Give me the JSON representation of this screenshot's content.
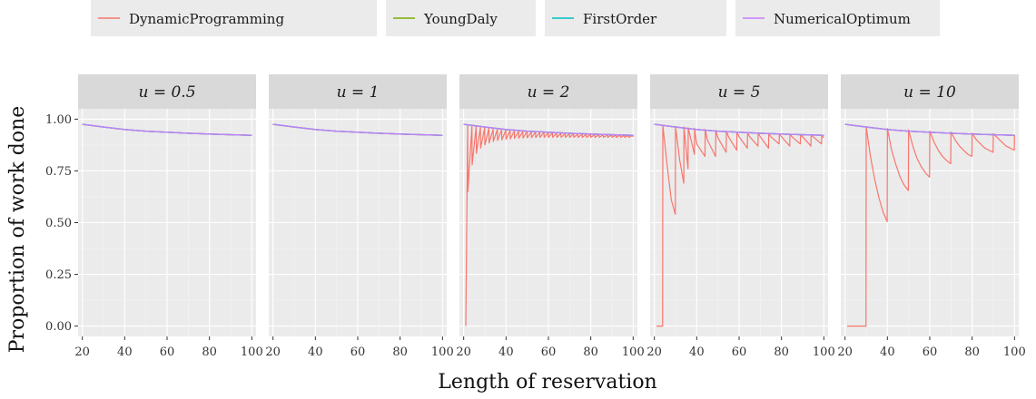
{
  "chart_data": {
    "type": "line",
    "xlabel": "Length of reservation",
    "ylabel": "Proportion of work done",
    "xlim": [
      18,
      102
    ],
    "ylim": [
      -0.05,
      1.05
    ],
    "x_ticks": [
      20,
      40,
      60,
      80,
      100
    ],
    "y_ticks": [
      0.0,
      0.25,
      0.5,
      0.75,
      1.0
    ],
    "y_tick_labels": [
      "0.00",
      "0.25",
      "0.50",
      "0.75",
      "1.00"
    ],
    "grid": true,
    "legend_position": "top",
    "legend": [
      {
        "label": "DynamicProgramming",
        "color": "#F8766D"
      },
      {
        "label": "YoungDaly",
        "color": "#7CAE00"
      },
      {
        "label": "FirstOrder",
        "color": "#00BFC4"
      },
      {
        "label": "NumericalOptimum",
        "color": "#C77CFF"
      }
    ],
    "optimum_curve": {
      "x": [
        20,
        30,
        40,
        50,
        60,
        70,
        80,
        90,
        100
      ],
      "y": [
        0.975,
        0.962,
        0.95,
        0.942,
        0.937,
        0.932,
        0.928,
        0.925,
        0.922
      ]
    },
    "facets": [
      {
        "strip": "u = 0.5",
        "dp": {
          "x": [
            20,
            30,
            40,
            50,
            60,
            70,
            80,
            90,
            100
          ],
          "y": [
            0.975,
            0.962,
            0.95,
            0.942,
            0.937,
            0.932,
            0.928,
            0.925,
            0.922
          ]
        }
      },
      {
        "strip": "u = 1",
        "dp": {
          "x": [
            20,
            30,
            40,
            50,
            60,
            70,
            80,
            90,
            100
          ],
          "y": [
            0.975,
            0.962,
            0.95,
            0.942,
            0.937,
            0.932,
            0.928,
            0.925,
            0.922
          ]
        }
      },
      {
        "strip": "u = 2",
        "dp": {
          "x": [
            21,
            21.9,
            22,
            23.9,
            24,
            25.9,
            26,
            27.9,
            28,
            29.9,
            30,
            31.9,
            32,
            33.9,
            34,
            35.9,
            36,
            37.9,
            38,
            39.9,
            40,
            41.9,
            42,
            43.9,
            44,
            45.9,
            46,
            47.9,
            48,
            49.9,
            50,
            51.9,
            52,
            53.9,
            54,
            55.9,
            56,
            57.9,
            58,
            59.9,
            60,
            61.9,
            62,
            63.9,
            64,
            65.9,
            66,
            67.9,
            68,
            69.9,
            70,
            71.9,
            72,
            73.9,
            74,
            75.9,
            76,
            77.9,
            78,
            79.9,
            80,
            81.9,
            82,
            83.9,
            84,
            85.9,
            86,
            87.9,
            88,
            89.9,
            90,
            91.9,
            92,
            93.9,
            94,
            95.9,
            96,
            97.9,
            98,
            99.9,
            100
          ],
          "y": [
            0.0,
            0.97,
            0.65,
            0.967,
            0.78,
            0.964,
            0.835,
            0.961,
            0.86,
            0.958,
            0.875,
            0.955,
            0.885,
            0.952,
            0.892,
            0.95,
            0.897,
            0.948,
            0.9,
            0.946,
            0.903,
            0.944,
            0.905,
            0.942,
            0.907,
            0.941,
            0.908,
            0.94,
            0.909,
            0.939,
            0.91,
            0.938,
            0.911,
            0.937,
            0.911,
            0.936,
            0.912,
            0.935,
            0.912,
            0.934,
            0.912,
            0.933,
            0.912,
            0.932,
            0.912,
            0.931,
            0.912,
            0.93,
            0.912,
            0.93,
            0.912,
            0.929,
            0.912,
            0.928,
            0.912,
            0.928,
            0.912,
            0.927,
            0.912,
            0.926,
            0.912,
            0.926,
            0.912,
            0.925,
            0.912,
            0.925,
            0.912,
            0.924,
            0.912,
            0.924,
            0.912,
            0.923,
            0.912,
            0.923,
            0.912,
            0.922,
            0.912,
            0.922,
            0.912,
            0.922,
            0.915
          ]
        }
      },
      {
        "strip": "u = 5",
        "dp": {
          "x": [
            21,
            23.9,
            24,
            26,
            28,
            29.9,
            30,
            32,
            33.9,
            34,
            35.9,
            36,
            38.9,
            39,
            40,
            43.9,
            44,
            45,
            48.9,
            49,
            50,
            53.9,
            54,
            55,
            58.9,
            59,
            60,
            63.9,
            64,
            65,
            68.9,
            69,
            70,
            73.9,
            74,
            75,
            78.9,
            79,
            80,
            83.9,
            84,
            85,
            88.9,
            89,
            90,
            93.9,
            94,
            95,
            98.9,
            99,
            100
          ],
          "y": [
            0.0,
            0.0,
            0.97,
            0.78,
            0.61,
            0.54,
            0.965,
            0.8,
            0.69,
            0.962,
            0.76,
            0.958,
            0.83,
            0.955,
            0.88,
            0.82,
            0.95,
            0.9,
            0.82,
            0.945,
            0.91,
            0.84,
            0.942,
            0.915,
            0.85,
            0.938,
            0.915,
            0.86,
            0.935,
            0.915,
            0.87,
            0.932,
            0.915,
            0.86,
            0.93,
            0.915,
            0.88,
            0.928,
            0.915,
            0.87,
            0.926,
            0.915,
            0.88,
            0.924,
            0.915,
            0.87,
            0.923,
            0.915,
            0.88,
            0.922,
            0.91
          ]
        }
      },
      {
        "strip": "u = 10",
        "dp": {
          "x": [
            21,
            29.9,
            30,
            32,
            34,
            36,
            38,
            39.9,
            40,
            42,
            44,
            46,
            48,
            49.9,
            50,
            52,
            54,
            56,
            58,
            59.9,
            60,
            62,
            64,
            66,
            68,
            69.9,
            70,
            72,
            74,
            76,
            78,
            79.9,
            80,
            82,
            84,
            86,
            88,
            89.9,
            90,
            92,
            94,
            96,
            98,
            99.9,
            100
          ],
          "y": [
            0.0,
            0.0,
            0.963,
            0.82,
            0.71,
            0.62,
            0.55,
            0.505,
            0.955,
            0.85,
            0.78,
            0.72,
            0.68,
            0.655,
            0.948,
            0.87,
            0.81,
            0.77,
            0.74,
            0.72,
            0.942,
            0.89,
            0.85,
            0.82,
            0.8,
            0.785,
            0.938,
            0.9,
            0.87,
            0.85,
            0.83,
            0.82,
            0.933,
            0.9,
            0.88,
            0.86,
            0.85,
            0.84,
            0.93,
            0.91,
            0.89,
            0.87,
            0.86,
            0.85,
            0.925
          ]
        }
      }
    ]
  }
}
